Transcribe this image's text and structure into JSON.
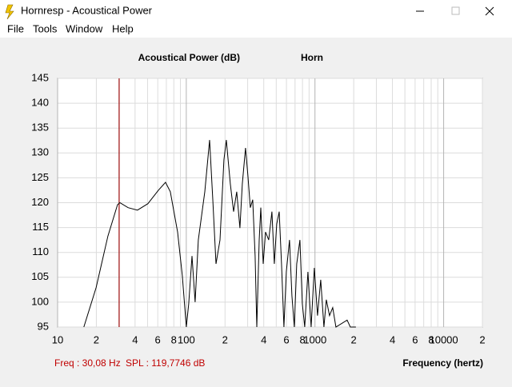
{
  "window": {
    "title": "Hornresp - Acoustical Power",
    "menu": [
      "File",
      "Tools",
      "Window",
      "Help"
    ]
  },
  "chart_data": {
    "type": "line",
    "title": "Acoustical Power (dB)",
    "subtitle": "Horn",
    "xlabel": "Frequency (hertz)",
    "log_x": true,
    "grid": true,
    "xlim": [
      10,
      20000
    ],
    "xticks": [
      10,
      {
        "value": 20,
        "label": "2"
      },
      {
        "value": 40,
        "label": "4"
      },
      {
        "value": 60,
        "label": "6"
      },
      {
        "value": 80,
        "label": "8"
      },
      100,
      {
        "value": 200,
        "label": "2"
      },
      {
        "value": 400,
        "label": "4"
      },
      {
        "value": 600,
        "label": "6"
      },
      {
        "value": 800,
        "label": "8"
      },
      1000,
      {
        "value": 2000,
        "label": "2"
      },
      {
        "value": 4000,
        "label": "4"
      },
      {
        "value": 6000,
        "label": "6"
      },
      {
        "value": 8000,
        "label": "8"
      },
      10000,
      {
        "value": 20000,
        "label": "2"
      }
    ],
    "x_minor_grid": [
      30,
      50,
      70,
      90,
      300,
      500,
      700,
      900,
      3000,
      5000,
      7000,
      9000
    ],
    "ylim": [
      95,
      145
    ],
    "yticks": [
      95,
      100,
      105,
      110,
      115,
      120,
      125,
      130,
      135,
      140,
      145
    ],
    "cursor": {
      "x": 30.08,
      "color": "#a01010"
    },
    "series": [
      {
        "color": "#000000",
        "x": [
          16,
          19.9,
          24.6,
          29.2,
          30.5,
          35.3,
          41.7,
          50.3,
          60.7,
          69,
          75.2,
          85.6,
          93.2,
          100,
          104.5,
          110.7,
          117.2,
          124.1,
          131.4,
          139.2,
          151.7,
          160.6,
          170.1,
          182.7,
          196.2,
          204.8,
          220,
          233,
          246.7,
          261.2,
          272.7,
          288.7,
          301.4,
          314.7,
          328.5,
          342.9,
          352.9,
          368.4,
          379.2,
          395.8,
          413,
          437.3,
          463.1,
          483.4,
          504.7,
          526.9,
          549.9,
          574.1,
          599.1,
          634.5,
          662.2,
          691.4,
          721.6,
          764.2,
          797.7,
          832.7,
          881.8,
          933.7,
          988.6,
          1046.9,
          1108.5,
          1173.7,
          1225.4,
          1297.5,
          1374,
          1454.9,
          1777.7,
          1882.6,
          2081
        ],
        "values": [
          95,
          102.9,
          113.3,
          119.6,
          120,
          119,
          118.5,
          119.8,
          122.5,
          124.1,
          122.2,
          114.1,
          105.3,
          95,
          99.7,
          109.3,
          100,
          112.5,
          117.3,
          122.2,
          132.6,
          120.6,
          107.7,
          112.5,
          128.6,
          132.6,
          123.8,
          118.2,
          122.2,
          114.9,
          123.8,
          131,
          125.4,
          119,
          120.6,
          109.3,
          95,
          112.5,
          119,
          107.7,
          114.1,
          112.5,
          118.2,
          107.7,
          115.7,
          118.2,
          107.7,
          95,
          106.1,
          112.5,
          101.3,
          95,
          107.7,
          112.5,
          99.7,
          95,
          106.1,
          95,
          106.9,
          97.3,
          104.5,
          95,
          100.5,
          97.3,
          98.9,
          95,
          96.4,
          95,
          95
        ]
      }
    ]
  },
  "status_bar": [
    "Freq : 30,08 Hz",
    "SPL : 119,7746 dB"
  ]
}
